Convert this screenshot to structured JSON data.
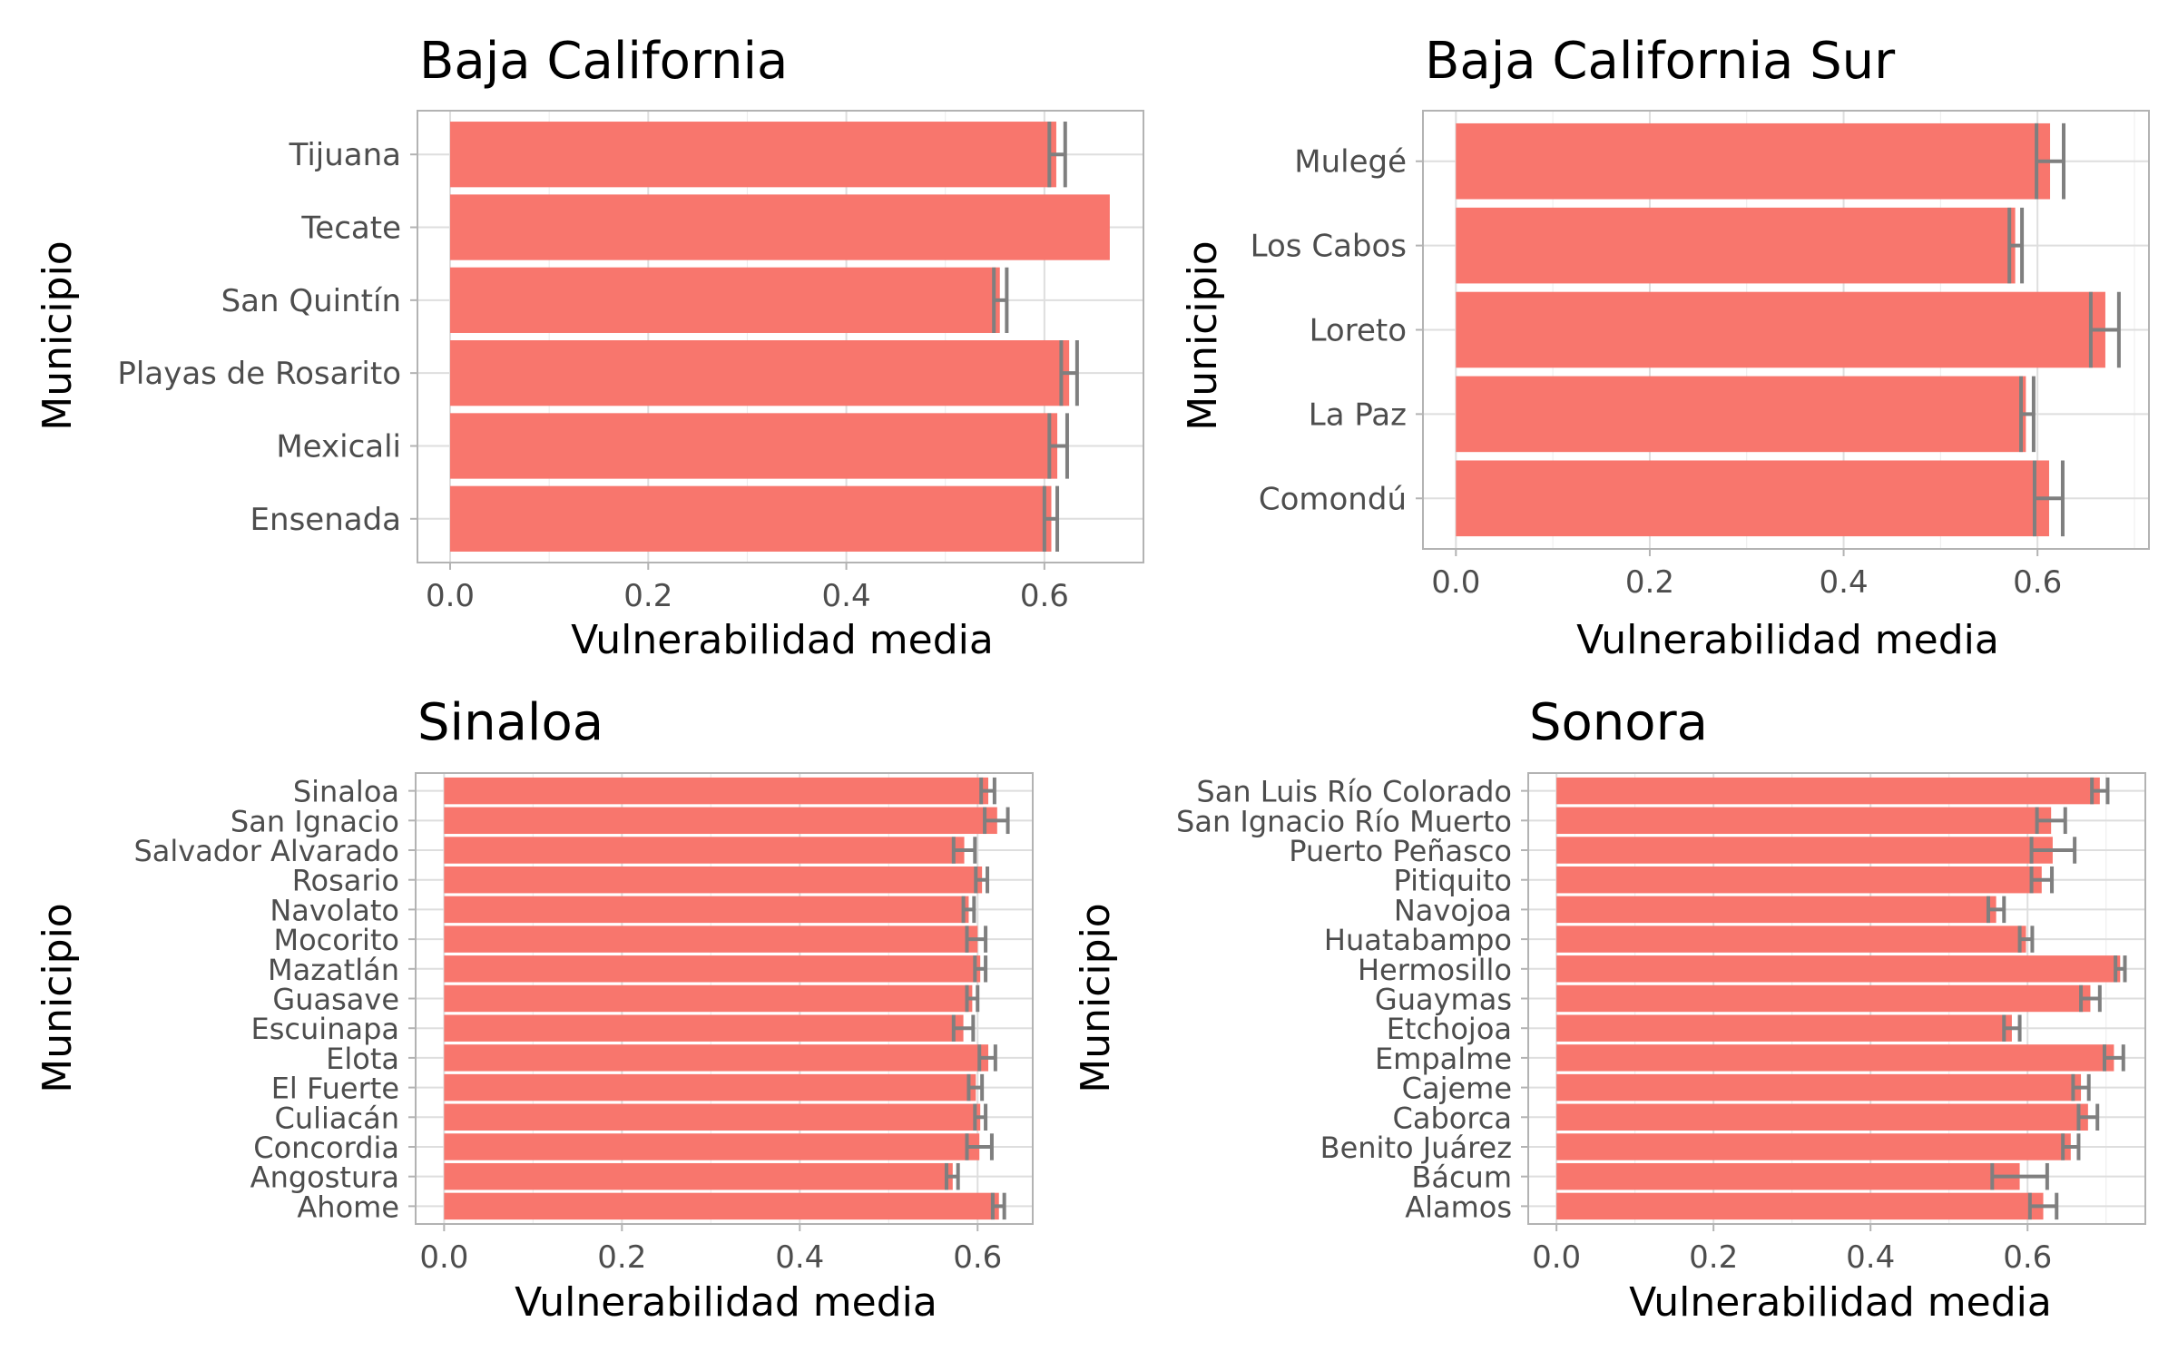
{
  "colors": {
    "bar": "#F8766D",
    "error_bar": "#7F7F7F",
    "panel_border": "#B3B3B3",
    "grid": "#DEDEDE",
    "tick_text": "#4D4D4D"
  },
  "chart_data": [
    {
      "type": "bar",
      "orientation": "horizontal",
      "title": "Baja California",
      "xlabel": "Vulnerabilidad media",
      "ylabel": "Municipio",
      "xlim": [
        -0.033,
        0.7
      ],
      "xticks": [
        "0.0",
        "0.2",
        "0.4",
        "0.6"
      ],
      "categories": [
        "Ensenada",
        "Mexicali",
        "Playas de Rosarito",
        "San Quintín",
        "Tecate",
        "Tijuana"
      ],
      "values": [
        0.607,
        0.613,
        0.625,
        0.555,
        0.666,
        0.612
      ],
      "error_low": [
        0.6,
        0.605,
        0.617,
        0.549,
        null,
        0.605
      ],
      "error_high": [
        0.613,
        0.623,
        0.633,
        0.562,
        null,
        0.621
      ],
      "grid": true
    },
    {
      "type": "bar",
      "orientation": "horizontal",
      "title": "Baja California Sur",
      "xlabel": "Vulnerabilidad media",
      "ylabel": "Municipio",
      "xlim": [
        -0.034,
        0.715
      ],
      "xticks": [
        "0.0",
        "0.2",
        "0.4",
        "0.6"
      ],
      "categories": [
        "Comondú",
        "La Paz",
        "Loreto",
        "Los Cabos",
        "Mulegé"
      ],
      "values": [
        0.612,
        0.588,
        0.67,
        0.577,
        0.613
      ],
      "error_low": [
        0.597,
        0.583,
        0.655,
        0.571,
        0.599
      ],
      "error_high": [
        0.626,
        0.596,
        0.684,
        0.584,
        0.627
      ],
      "grid": true
    },
    {
      "type": "bar",
      "orientation": "horizontal",
      "title": "Sinaloa",
      "xlabel": "Vulnerabilidad media",
      "ylabel": "Municipio",
      "xlim": [
        -0.032,
        0.662
      ],
      "xticks": [
        "0.0",
        "0.2",
        "0.4",
        "0.6"
      ],
      "categories": [
        "Ahome",
        "Angostura",
        "Concordia",
        "Culiacán",
        "El Fuerte",
        "Elota",
        "Escuinapa",
        "Guasave",
        "Mazatlán",
        "Mocorito",
        "Navolato",
        "Rosario",
        "Salvador Alvarado",
        "San Ignacio",
        "Sinaloa"
      ],
      "values": [
        0.624,
        0.572,
        0.602,
        0.603,
        0.598,
        0.612,
        0.584,
        0.594,
        0.603,
        0.6,
        0.59,
        0.605,
        0.585,
        0.622,
        0.612
      ],
      "error_low": [
        0.617,
        0.565,
        0.588,
        0.597,
        0.59,
        0.602,
        0.573,
        0.588,
        0.597,
        0.588,
        0.584,
        0.598,
        0.573,
        0.608,
        0.604
      ],
      "error_high": [
        0.63,
        0.578,
        0.616,
        0.609,
        0.605,
        0.62,
        0.595,
        0.6,
        0.609,
        0.609,
        0.596,
        0.611,
        0.597,
        0.634,
        0.619
      ],
      "grid": true
    },
    {
      "type": "bar",
      "orientation": "horizontal",
      "title": "Sonora",
      "xlabel": "Vulnerabilidad media",
      "ylabel": "Municipio",
      "xlim": [
        -0.036,
        0.75
      ],
      "xticks": [
        "0.0",
        "0.2",
        "0.4",
        "0.6"
      ],
      "categories": [
        "Alamos",
        "Bácum",
        "Benito Juárez",
        "Caborca",
        "Cajeme",
        "Empalme",
        "Etchojoa",
        "Guaymas",
        "Hermosillo",
        "Huatabampo",
        "Navojoa",
        "Pitiquito",
        "Puerto Peñasco",
        "San Ignacio Río Muerto",
        "San Luis Río Colorado"
      ],
      "values": [
        0.62,
        0.59,
        0.655,
        0.677,
        0.668,
        0.71,
        0.58,
        0.68,
        0.718,
        0.598,
        0.56,
        0.618,
        0.632,
        0.63,
        0.692
      ],
      "error_low": [
        0.603,
        0.555,
        0.645,
        0.665,
        0.658,
        0.698,
        0.57,
        0.668,
        0.712,
        0.59,
        0.55,
        0.605,
        0.605,
        0.612,
        0.682
      ],
      "error_high": [
        0.637,
        0.625,
        0.665,
        0.689,
        0.678,
        0.722,
        0.59,
        0.692,
        0.724,
        0.606,
        0.57,
        0.631,
        0.66,
        0.648,
        0.702
      ],
      "grid": true
    }
  ]
}
